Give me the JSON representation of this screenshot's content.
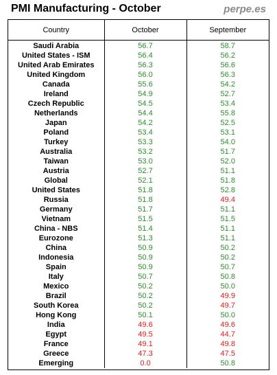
{
  "header": {
    "title": "PMI Manufacturing - October",
    "brand": "perpe.es"
  },
  "colors": {
    "above_50": "#2e8b2e",
    "below_50": "#e01b1b"
  },
  "table": {
    "columns": [
      "Country",
      "October",
      "September"
    ],
    "rows": [
      {
        "country": "Saudi Arabia",
        "october": "56.7",
        "september": "58.7"
      },
      {
        "country": "United States - ISM",
        "october": "56.4",
        "september": "56.2"
      },
      {
        "country": "United Arab Emirates",
        "october": "56.3",
        "september": "56.6"
      },
      {
        "country": "United Kingdom",
        "october": "56.0",
        "september": "56.3"
      },
      {
        "country": "Canada",
        "october": "55.6",
        "september": "54.2"
      },
      {
        "country": "Ireland",
        "october": "54.9",
        "september": "52.7"
      },
      {
        "country": "Czech Republic",
        "october": "54.5",
        "september": "53.4"
      },
      {
        "country": "Netherlands",
        "october": "54.4",
        "september": "55.8"
      },
      {
        "country": "Japan",
        "october": "54.2",
        "september": "52.5"
      },
      {
        "country": "Poland",
        "october": "53.4",
        "september": "53.1"
      },
      {
        "country": "Turkey",
        "october": "53.3",
        "september": "54.0"
      },
      {
        "country": "Australia",
        "october": "53.2",
        "september": "51.7"
      },
      {
        "country": "Taiwan",
        "october": "53.0",
        "september": "52.0"
      },
      {
        "country": "Austria",
        "october": "52.7",
        "september": "51.1"
      },
      {
        "country": "Global",
        "october": "52.1",
        "september": "51.8"
      },
      {
        "country": "United States",
        "october": "51.8",
        "september": "52.8"
      },
      {
        "country": "Russia",
        "october": "51.8",
        "september": "49.4"
      },
      {
        "country": "Germany",
        "october": "51.7",
        "september": "51.1"
      },
      {
        "country": "Vietnam",
        "october": "51.5",
        "september": "51.5"
      },
      {
        "country": "China - NBS",
        "october": "51.4",
        "september": "51.1"
      },
      {
        "country": "Eurozone",
        "october": "51.3",
        "september": "51.1"
      },
      {
        "country": "China",
        "october": "50.9",
        "september": "50.2"
      },
      {
        "country": "Indonesia",
        "october": "50.9",
        "september": "50.2"
      },
      {
        "country": "Spain",
        "october": "50.9",
        "september": "50.7"
      },
      {
        "country": "Italy",
        "october": "50.7",
        "september": "50.8"
      },
      {
        "country": "Mexico",
        "october": "50.2",
        "september": "50.0"
      },
      {
        "country": "Brazil",
        "october": "50.2",
        "september": "49.9"
      },
      {
        "country": "South Korea",
        "october": "50.2",
        "september": "49.7"
      },
      {
        "country": "Hong Kong",
        "october": "50.1",
        "september": "50.0"
      },
      {
        "country": "India",
        "october": "49.6",
        "september": "49.6"
      },
      {
        "country": "Egypt",
        "october": "49.5",
        "september": "44.7"
      },
      {
        "country": "France",
        "october": "49.1",
        "september": "49.8"
      },
      {
        "country": "Greece",
        "october": "47.3",
        "september": "47.5"
      },
      {
        "country": "Emerging",
        "october": "0.0",
        "september": "50.8"
      }
    ]
  }
}
